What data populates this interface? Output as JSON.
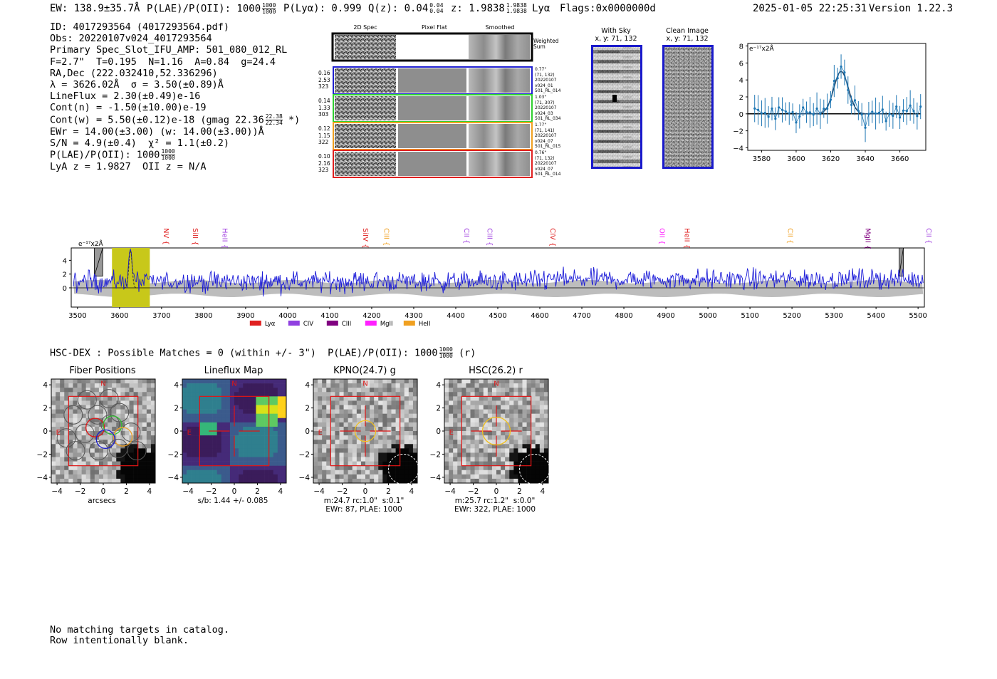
{
  "header": {
    "ew": "EW: 138.9±35.7Å",
    "plae_label": "P(LAE)/P(OII): 1000",
    "plae_num": "1000",
    "plae_den": "1000",
    "plya": "P(Lyα): 0.999",
    "qz_label": "Q(z): 0.04",
    "qz_num": "0.04",
    "qz_den": "0.04",
    "z_label": "z: 1.9838",
    "z_num": "1.9838",
    "z_den": "1.9838",
    "line": "Lyα",
    "flags": "Flags:0x0000000d",
    "timestamp": "2025-01-05 22:25:31",
    "version": "Version 1.22.3"
  },
  "info": {
    "id": "ID: 4017293564 (4017293564.pdf)",
    "obs": "Obs: 20220107v024_4017293564",
    "primary": "Primary Spec_Slot_IFU_AMP: 501_080_012_RL",
    "fit": "F=2.7\"  T=0.195  N=1.16  A=0.84  g=24.4",
    "radec": "RA,Dec (222.032410,52.336296)",
    "lambda": "λ = 3626.02Å  σ = 3.50(±0.89)Å",
    "lineflux": "LineFlux = 2.30(±0.49)e-16",
    "contn": "Cont(n) = -1.50(±10.00)e-19",
    "contw_label": "Cont(w) = 5.50(±0.12)e-18 (gmag 22.36",
    "contw_num": "22.38",
    "contw_den": "22.34",
    "contw_tail": "*)",
    "ewr": "EWr = 14.00(±3.00) (w: 14.00(±3.00))Å",
    "sn": "S/N = 4.9(±0.4)  χ² = 1.1(±0.2)",
    "plae_label": "P(LAE)/P(OII): 1000",
    "plae_num": "1000",
    "plae_den": "1000",
    "lya": "LyA z = 1.9827  OII z = N/A"
  },
  "cutouts": {
    "col_2d": "2D Spec",
    "col_flat": "Pixel Flat",
    "col_smooth": "Smoothed",
    "weighted": "Weighted\nSum",
    "rows": [
      {
        "left": "0.16\n2.53\n323",
        "right": "0.77\"\n(71, 132)\n20220107\nv024_01\n501_RL_014",
        "color": "#2020d0"
      },
      {
        "left": "0.14\n1.33\n303",
        "right": "1.03\"\n(71, 307)\n20220107\nv024_03\n501_RL_034",
        "color": "#30d030"
      },
      {
        "left": "0.12\n1.15\n322",
        "right": "1.77\"\n(71, 141)\n20220107\nv024_07\n501_RL_015",
        "color": "#f0a020"
      },
      {
        "left": "0.10\n2.16\n323",
        "right": "0.76\"\n(71, 132)\n20220107\nv024_07\n501_RL_014",
        "color": "#e02020"
      }
    ],
    "withsky_title": "With Sky\nx, y: 71, 132",
    "clean_title": "Clean Image\nx, y: 71, 132"
  },
  "zoom_plot": {
    "unit": "e⁻¹⁷x2Å",
    "yticks": [
      "8",
      "6",
      "4",
      "2",
      "0",
      "−2",
      "−4"
    ],
    "xticks": [
      "3580",
      "3600",
      "3620",
      "3640",
      "3660"
    ]
  },
  "spectrum": {
    "unit": "e⁻¹⁷x2Å",
    "yticks": [
      "4",
      "2",
      "0"
    ],
    "xticks": [
      "3500",
      "3600",
      "3700",
      "3800",
      "3900",
      "4000",
      "4100",
      "4200",
      "4300",
      "4400",
      "4500",
      "4600",
      "4700",
      "4800",
      "4900",
      "5000",
      "5100",
      "5200",
      "5300",
      "5400",
      "5500"
    ],
    "lines": [
      {
        "name": "NV",
        "wave": 3700,
        "color": "#e02020"
      },
      {
        "name": "SiII",
        "wave": 3770,
        "color": "#e02020"
      },
      {
        "name": "HeII",
        "wave": 3840,
        "color": "#a040e0"
      },
      {
        "name": "SiIV",
        "wave": 4175,
        "color": "#e02020"
      },
      {
        "name": "CIII",
        "wave": 4225,
        "color": "#f0a020"
      },
      {
        "name": "CII",
        "wave": 4415,
        "color": "#a040e0"
      },
      {
        "name": "CIII",
        "wave": 4470,
        "color": "#a040e0"
      },
      {
        "name": "CIV",
        "wave": 4620,
        "color": "#e02020"
      },
      {
        "name": "OII",
        "wave": 4880,
        "color": "#ff20ff"
      },
      {
        "name": "HeII",
        "wave": 4940,
        "color": "#e02020"
      },
      {
        "name": "CII",
        "wave": 5185,
        "color": "#f0a020"
      },
      {
        "name": "MgII",
        "wave": 5370,
        "color": "#800080"
      },
      {
        "name": "CII",
        "wave": 5515,
        "color": "#a040e0"
      }
    ],
    "legend": [
      {
        "name": "Lyα",
        "color": "#e02020"
      },
      {
        "name": "CIV",
        "color": "#9040e0"
      },
      {
        "name": "CIII",
        "color": "#800080"
      },
      {
        "name": "MgII",
        "color": "#ff20ff"
      },
      {
        "name": "HeII",
        "color": "#f0a020"
      }
    ]
  },
  "hsc": {
    "label": "HSC-DEX : Possible Matches = 0 (within +/- 3\")  P(LAE)/P(OII): 1000",
    "num": "1000",
    "den": "1000",
    "tail": "(r)"
  },
  "panels": [
    {
      "title": "Fiber Positions",
      "caption": "arcsecs"
    },
    {
      "title": "Lineflux Map",
      "caption": "s/b: 1.44 +/- 0.085"
    },
    {
      "title": "KPNO(24.7) g",
      "caption": "m:24.7 rc:1.0\"  s:0.1\"\nEWr: 87, PLAE: 1000"
    },
    {
      "title": "HSC(26.2) r",
      "caption": "m:25.7 rc:1.2\"  s:0.0\"\nEWr: 322, PLAE: 1000"
    }
  ],
  "panel_axis": {
    "ticks": [
      "4",
      "2",
      "0",
      "−2",
      "−4"
    ],
    "xticks": [
      "−4",
      "−2",
      "0",
      "2",
      "4"
    ],
    "north": "N",
    "east": "E"
  },
  "footer": {
    "line1": "No matching targets in catalog.",
    "line2": "Row intentionally blank."
  }
}
